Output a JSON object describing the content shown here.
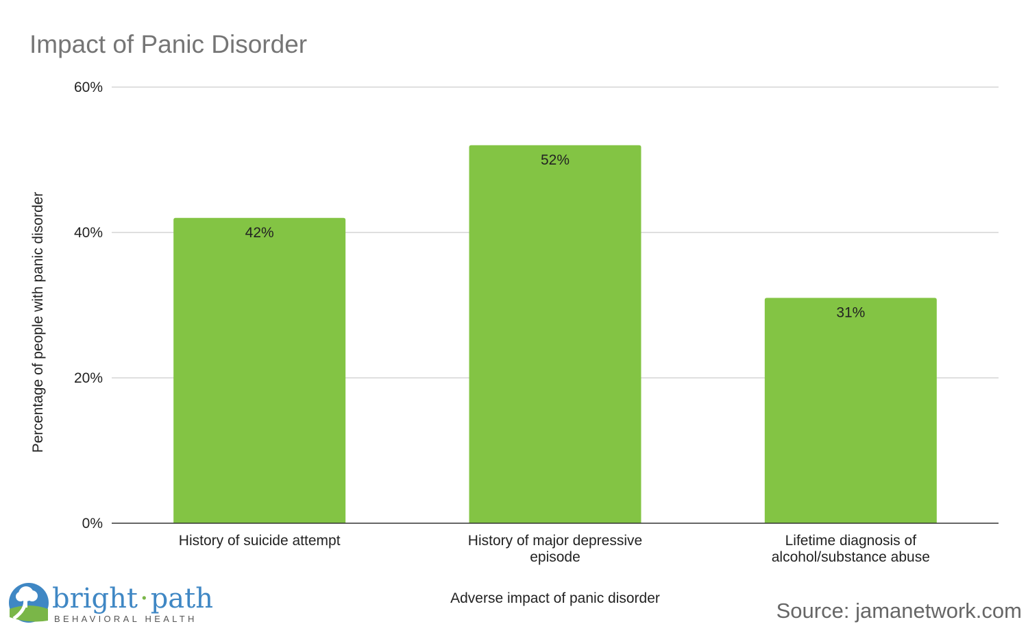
{
  "chart_data": {
    "type": "bar",
    "title": "Impact of Panic Disorder",
    "xlabel": "Adverse impact of panic disorder",
    "ylabel": "Percentage of people with panic disorder",
    "categories": [
      [
        "History of suicide attempt"
      ],
      [
        "History of major depressive",
        "episode"
      ],
      [
        "Lifetime diagnosis of",
        "alcohol/substance abuse"
      ]
    ],
    "values": [
      42,
      52,
      31
    ],
    "value_labels": [
      "42%",
      "52%",
      "31%"
    ],
    "ylim": [
      0,
      60
    ],
    "yticks": [
      0,
      20,
      40,
      60
    ],
    "ytick_labels": [
      "0%",
      "20%",
      "40%",
      "60%"
    ],
    "grid": true,
    "bar_color": "#83c444",
    "legend": "none"
  },
  "source": "Source: jamanetwork.com",
  "logo": {
    "left": "bright",
    "right": "path",
    "sub": "BEHAVIORAL HEALTH",
    "icon": "tree-path-logo-icon",
    "colors": {
      "blue": "#3f87c4",
      "green": "#7ab648"
    }
  }
}
